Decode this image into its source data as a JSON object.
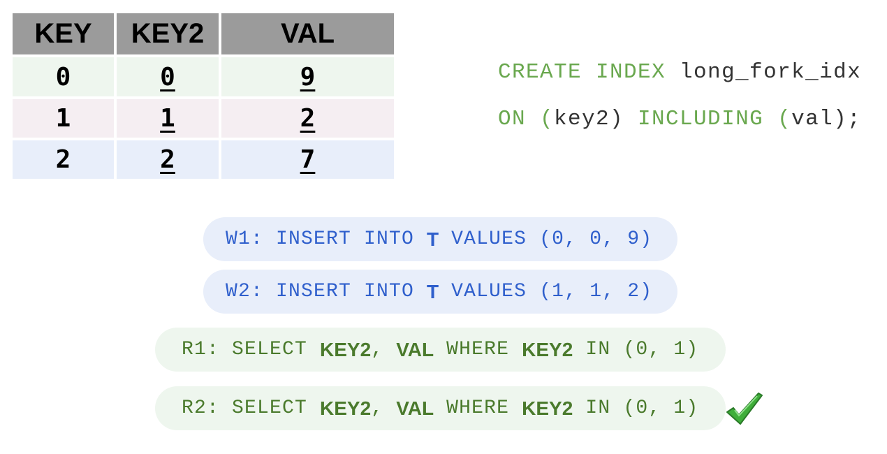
{
  "table": {
    "headers": [
      "KEY",
      "KEY2",
      "VAL"
    ],
    "rows": [
      [
        "0",
        "0",
        "9"
      ],
      [
        "1",
        "1",
        "2"
      ],
      [
        "2",
        "2",
        "7"
      ]
    ]
  },
  "code": {
    "line1": [
      {
        "t": "CREATE INDEX ",
        "kw": true
      },
      {
        "t": "long_fork_idx",
        "kw": false
      }
    ],
    "line2": [
      {
        "t": "ON (",
        "kw": true
      },
      {
        "t": "key2) ",
        "kw": false
      },
      {
        "t": "INCLUDING (",
        "kw": true
      },
      {
        "t": "val);",
        "kw": false
      }
    ]
  },
  "operations": [
    {
      "id": "W1",
      "type": "write",
      "segments": [
        {
          "t": "W1: INSERT INTO "
        },
        {
          "t": "T",
          "b": true
        },
        {
          "t": " VALUES (0, 0, 9)"
        }
      ]
    },
    {
      "id": "W2",
      "type": "write",
      "segments": [
        {
          "t": "W2: INSERT INTO "
        },
        {
          "t": "T",
          "b": true
        },
        {
          "t": " VALUES (1, 1, 2)"
        }
      ]
    },
    {
      "id": "R1",
      "type": "read",
      "segments": [
        {
          "t": "R1: SELECT "
        },
        {
          "t": "KEY2",
          "b": true
        },
        {
          "t": ", "
        },
        {
          "t": "VAL",
          "b": true
        },
        {
          "t": " WHERE "
        },
        {
          "t": "KEY2",
          "b": true
        },
        {
          "t": " IN (0, 1)"
        }
      ]
    },
    {
      "id": "R2",
      "type": "read",
      "segments": [
        {
          "t": "R2: SELECT "
        },
        {
          "t": "KEY2",
          "b": true
        },
        {
          "t": ", "
        },
        {
          "t": "VAL",
          "b": true
        },
        {
          "t": " WHERE "
        },
        {
          "t": "KEY2",
          "b": true
        },
        {
          "t": " IN (0, 1)"
        }
      ],
      "status_icon": "checkmark-icon"
    }
  ],
  "colors": {
    "write": "#2f5fcc",
    "read": "#4a7a2c",
    "keyword": "#6aa84f",
    "check": "#3fae3a"
  }
}
